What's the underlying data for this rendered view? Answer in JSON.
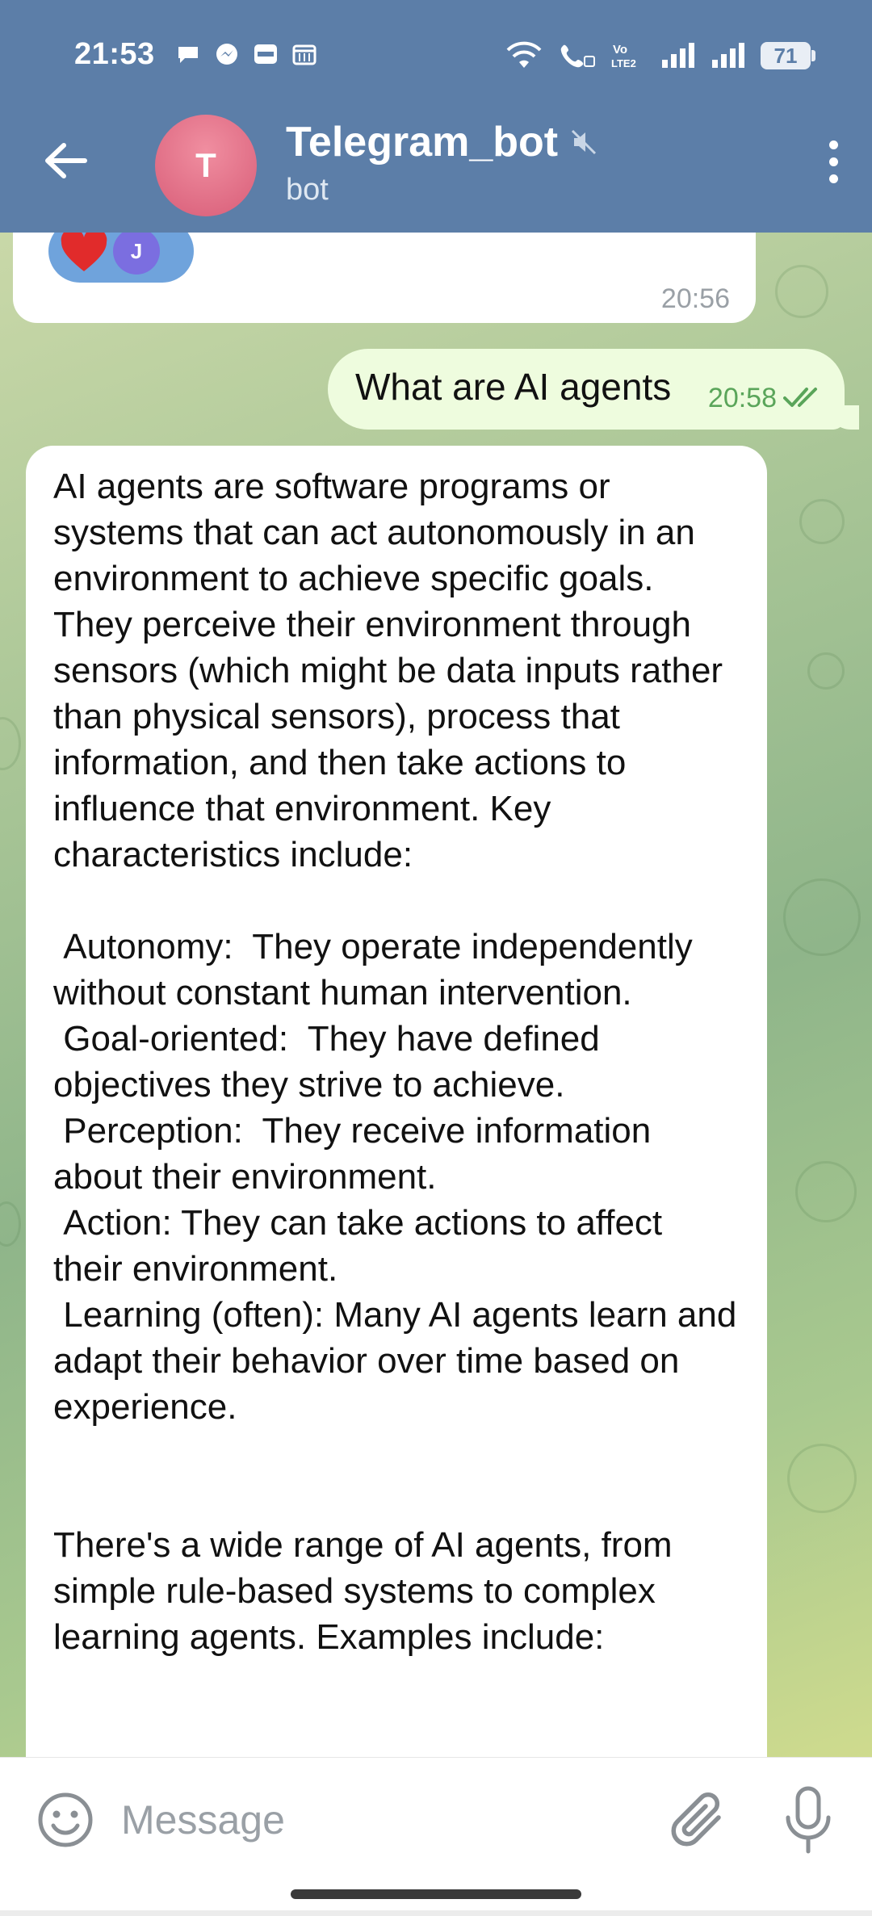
{
  "status_bar": {
    "time": "21:53",
    "battery": "71",
    "icons": [
      "chat-bubble-icon",
      "messenger-icon",
      "paytm-icon",
      "calendar-icon",
      "wifi-icon",
      "volte-call-icon",
      "lte-icon",
      "signal-icon",
      "signal-icon",
      "battery-icon"
    ]
  },
  "header": {
    "avatar_letter": "T",
    "title": "Telegram_bot",
    "subtitle": "bot",
    "muted": true
  },
  "messages": {
    "previous": {
      "reaction_avatar_letter": "J",
      "time": "20:56"
    },
    "outgoing": {
      "text": "What are AI agents",
      "time": "20:58",
      "status": "read"
    },
    "incoming": {
      "paragraph": "AI agents are software programs or systems that can act autonomously in an environment to achieve specific goals.  They perceive their environment through sensors (which might be data inputs rather than physical sensors), process that information, and then take actions to influence that environment. Key characteristics include:",
      "items": [
        {
          "text": " Autonomy:  They operate independently without constant human intervention.",
          "bold": true
        },
        {
          "text": " Goal-oriented:  They have defined objectives they strive to achieve.",
          "bold": false
        },
        {
          "text": " Perception:  They receive information about their environment.",
          "bold": true
        },
        {
          "text": " Action: They can take actions to affect their environment.",
          "bold": false
        },
        {
          "text": " Learning (often): Many AI agents learn and adapt their behavior over time based on experience.",
          "bold": true
        }
      ],
      "closing": "There's a wide range of AI agents, from simple rule-based systems to complex learning agents. Examples include:"
    }
  },
  "input": {
    "placeholder": "Message"
  },
  "colors": {
    "header_bg": "#5c7ea8",
    "outgoing_bubble": "#eefcde",
    "incoming_bubble": "#ffffff",
    "read_check": "#5aa55a"
  }
}
